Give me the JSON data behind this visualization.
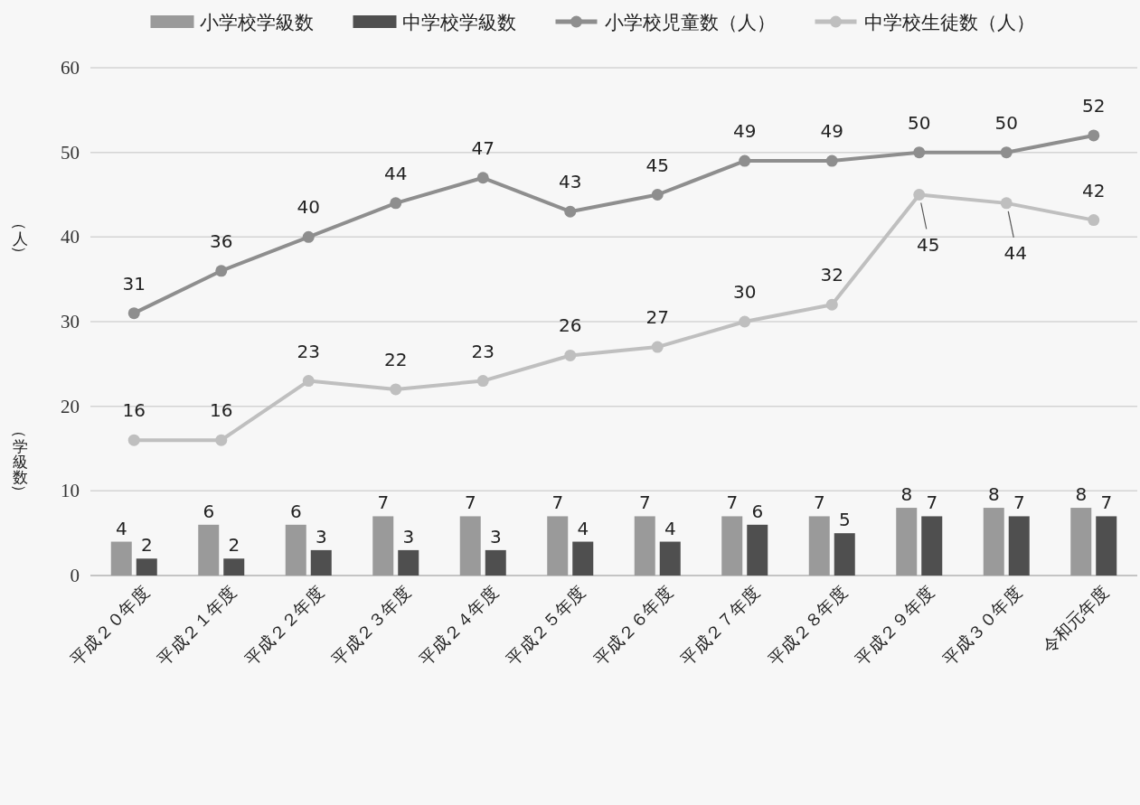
{
  "chart_data": {
    "type": "bar",
    "categories": [
      "平成２０年度",
      "平成２１年度",
      "平成２２年度",
      "平成２３年度",
      "平成２４年度",
      "平成２５年度",
      "平成２６年度",
      "平成２７年度",
      "平成２８年度",
      "平成２９年度",
      "平成３０年度",
      "令和元年度"
    ],
    "series": [
      {
        "name": "小学校学級数",
        "color": "#9a9a9a",
        "values": [
          4,
          6,
          6,
          7,
          7,
          7,
          7,
          7,
          7,
          8,
          8,
          8
        ]
      },
      {
        "name": "中学校学級数",
        "color": "#4f4f4f",
        "values": [
          2,
          2,
          3,
          3,
          3,
          4,
          4,
          6,
          5,
          7,
          7,
          7
        ]
      },
      {
        "name": "小学校児童数（人）",
        "type": "line",
        "color": "#8e8e8e",
        "values": [
          31,
          36,
          40,
          44,
          47,
          43,
          45,
          49,
          49,
          50,
          50,
          52
        ]
      },
      {
        "name": "中学校生徒数（人）",
        "type": "line",
        "color": "#bfbfbf",
        "values": [
          16,
          16,
          23,
          22,
          23,
          26,
          27,
          30,
          32,
          45,
          44,
          42
        ]
      }
    ],
    "ylabel": "（学級数）",
    "annotations": [
      "（人）"
    ],
    "ylim": [
      0,
      60
    ],
    "yticks": [
      0,
      10,
      20,
      30,
      40,
      50,
      60
    ],
    "grid": "y",
    "legend": "top",
    "marker": "circle",
    "line_style": "solid",
    "data_labels": true
  }
}
